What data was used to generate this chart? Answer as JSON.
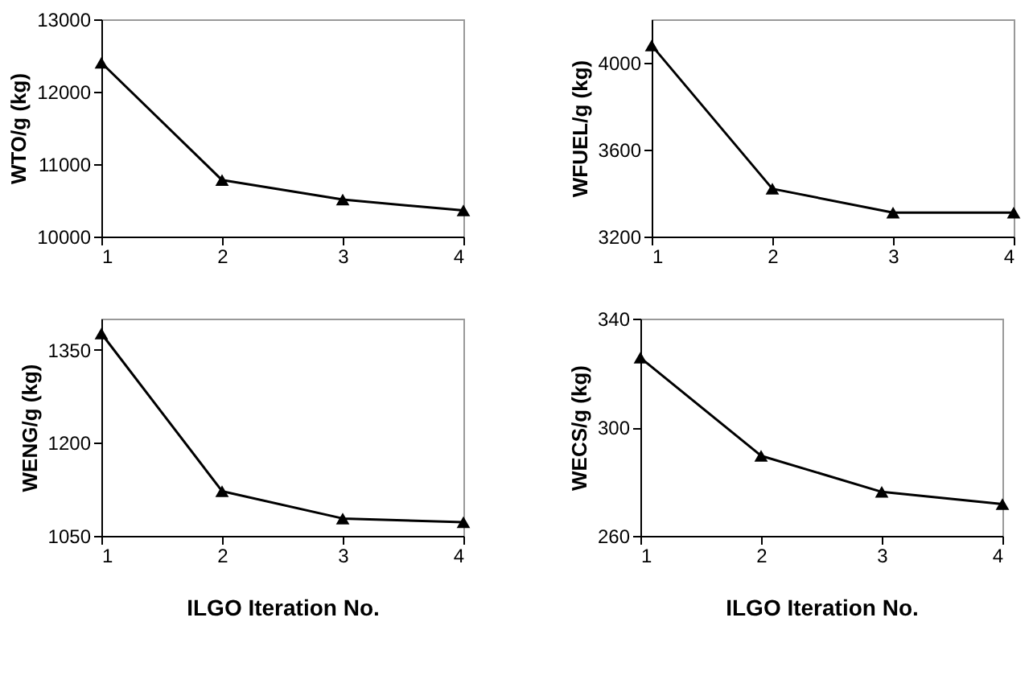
{
  "chart_data": [
    {
      "type": "line",
      "x": [
        1,
        2,
        3,
        4
      ],
      "values": [
        12400,
        10780,
        10510,
        10360
      ],
      "color": "#000000",
      "marker": "triangle",
      "line_style": "solid",
      "ylabel": "WTO/g (kg)",
      "xlim": [
        1,
        4
      ],
      "xticks": [
        1,
        2,
        3,
        4
      ],
      "ylim": [
        10000,
        13000
      ],
      "yticks": [
        10000,
        11000,
        12000,
        13000
      ],
      "grid": false
    },
    {
      "type": "line",
      "x": [
        1,
        2,
        3,
        4
      ],
      "values": [
        4080,
        3420,
        3310,
        3310
      ],
      "color": "#000000",
      "marker": "triangle",
      "line_style": "solid",
      "ylabel": "WFUEL/g (kg)",
      "xlim": [
        1,
        4
      ],
      "xticks": [
        1,
        2,
        3,
        4
      ],
      "ylim": [
        3200,
        4200
      ],
      "yticks": [
        3200,
        3600,
        4000
      ],
      "grid": false
    },
    {
      "type": "line",
      "x": [
        1,
        2,
        3,
        4
      ],
      "values": [
        1376,
        1122,
        1078,
        1072
      ],
      "color": "#000000",
      "marker": "triangle",
      "line_style": "solid",
      "ylabel": "WENG/g (kg)",
      "xlabel": "ILGO Iteration No.",
      "xlim": [
        1,
        4
      ],
      "xticks": [
        1,
        2,
        3,
        4
      ],
      "ylim": [
        1050,
        1400
      ],
      "yticks": [
        1050,
        1200,
        1350
      ],
      "grid": false
    },
    {
      "type": "line",
      "x": [
        1,
        2,
        3,
        4
      ],
      "values": [
        325.6,
        289.5,
        276.2,
        271.7
      ],
      "color": "#000000",
      "marker": "triangle",
      "line_style": "solid",
      "ylabel": "WECS/g (kg)",
      "xlabel": "ILGO Iteration No.",
      "xlim": [
        1,
        4
      ],
      "xticks": [
        1,
        2,
        3,
        4
      ],
      "ylim": [
        260,
        340
      ],
      "yticks": [
        260,
        300,
        340
      ],
      "grid": false
    }
  ]
}
